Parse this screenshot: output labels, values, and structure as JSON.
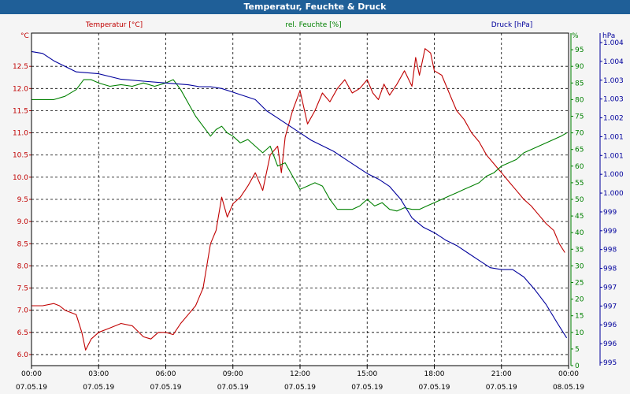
{
  "window": {
    "title": "Temperatur, Feuchte & Druck"
  },
  "colors": {
    "temp": "#c00000",
    "hum": "#008000",
    "press": "#00009c",
    "axis": "#000000",
    "grid": "#000000"
  },
  "chart_data": {
    "type": "line",
    "title": "Temperatur, Feuchte & Druck",
    "x_ticks": [
      {
        "time": "00:00",
        "date": "07.05.19"
      },
      {
        "time": "03:00",
        "date": "07.05.19"
      },
      {
        "time": "06:00",
        "date": "07.05.19"
      },
      {
        "time": "09:00",
        "date": "07.05.19"
      },
      {
        "time": "12:00",
        "date": "07.05.19"
      },
      {
        "time": "15:00",
        "date": "07.05.19"
      },
      {
        "time": "18:00",
        "date": "07.05.19"
      },
      {
        "time": "21:00",
        "date": "07.05.19"
      },
      {
        "time": "00:00",
        "date": "08.05.19"
      }
    ],
    "xlim": [
      "2019-05-07 00:00",
      "2019-05-08 00:00"
    ],
    "grid": true,
    "axes": {
      "temp": {
        "label": "Temperatur [°C]",
        "unit": "°C",
        "ylim": [
          5.75,
          13.25
        ],
        "ticks": [
          "6.0",
          "6.5",
          "7.0",
          "7.5",
          "8.0",
          "8.5",
          "9.0",
          "9.5",
          "10.0",
          "10.5",
          "11.0",
          "11.5",
          "12.0",
          "12.5"
        ]
      },
      "hum": {
        "label": "rel. Feuchte [%]",
        "unit": "%",
        "ylim": [
          0,
          100
        ],
        "ticks": [
          "0",
          "5",
          "10",
          "15",
          "20",
          "25",
          "30",
          "35",
          "40",
          "45",
          "50",
          "55",
          "60",
          "65",
          "70",
          "75",
          "80",
          "85",
          "90",
          "95"
        ]
      },
      "press": {
        "label": "Druck [hPa]",
        "unit": "hPa",
        "ylim": [
          995.5,
          1004.5
        ],
        "ticks": [
          "995",
          "996",
          "996",
          "997",
          "997",
          "998",
          "998",
          "999",
          "999",
          "1.000",
          "1.000",
          "1.001",
          "1.001",
          "1.002",
          "1.003",
          "1.003",
          "1.004",
          "1.004"
        ]
      }
    },
    "series": [
      {
        "name": "Temperatur [°C]",
        "axis": "temp",
        "points": [
          [
            "00:00",
            7.1
          ],
          [
            "00:30",
            7.1
          ],
          [
            "01:00",
            7.15
          ],
          [
            "01:15",
            7.1
          ],
          [
            "01:30",
            7.0
          ],
          [
            "02:00",
            6.9
          ],
          [
            "02:15",
            6.5
          ],
          [
            "02:25",
            6.1
          ],
          [
            "02:40",
            6.35
          ],
          [
            "03:00",
            6.5
          ],
          [
            "03:30",
            6.6
          ],
          [
            "04:00",
            6.7
          ],
          [
            "04:30",
            6.65
          ],
          [
            "05:00",
            6.4
          ],
          [
            "05:20",
            6.35
          ],
          [
            "05:40",
            6.5
          ],
          [
            "06:00",
            6.5
          ],
          [
            "06:20",
            6.45
          ],
          [
            "06:40",
            6.7
          ],
          [
            "07:00",
            6.9
          ],
          [
            "07:20",
            7.1
          ],
          [
            "07:40",
            7.5
          ],
          [
            "08:00",
            8.5
          ],
          [
            "08:15",
            8.8
          ],
          [
            "08:30",
            9.55
          ],
          [
            "08:45",
            9.1
          ],
          [
            "09:00",
            9.4
          ],
          [
            "09:20",
            9.55
          ],
          [
            "09:40",
            9.8
          ],
          [
            "10:00",
            10.1
          ],
          [
            "10:20",
            9.7
          ],
          [
            "10:40",
            10.5
          ],
          [
            "11:00",
            10.7
          ],
          [
            "11:10",
            10.1
          ],
          [
            "11:20",
            10.9
          ],
          [
            "11:40",
            11.5
          ],
          [
            "12:00",
            11.95
          ],
          [
            "12:20",
            11.2
          ],
          [
            "12:40",
            11.5
          ],
          [
            "13:00",
            11.9
          ],
          [
            "13:20",
            11.7
          ],
          [
            "13:40",
            12.0
          ],
          [
            "14:00",
            12.2
          ],
          [
            "14:20",
            11.9
          ],
          [
            "14:40",
            12.0
          ],
          [
            "15:00",
            12.2
          ],
          [
            "15:15",
            11.9
          ],
          [
            "15:30",
            11.75
          ],
          [
            "15:45",
            12.1
          ],
          [
            "16:00",
            11.85
          ],
          [
            "16:20",
            12.1
          ],
          [
            "16:40",
            12.4
          ],
          [
            "17:00",
            12.05
          ],
          [
            "17:10",
            12.7
          ],
          [
            "17:20",
            12.3
          ],
          [
            "17:35",
            12.9
          ],
          [
            "17:50",
            12.8
          ],
          [
            "18:00",
            12.4
          ],
          [
            "18:20",
            12.3
          ],
          [
            "18:40",
            11.9
          ],
          [
            "19:00",
            11.5
          ],
          [
            "19:20",
            11.3
          ],
          [
            "19:40",
            11.0
          ],
          [
            "20:00",
            10.8
          ],
          [
            "20:20",
            10.5
          ],
          [
            "20:40",
            10.3
          ],
          [
            "21:00",
            10.1
          ],
          [
            "21:20",
            9.9
          ],
          [
            "21:40",
            9.7
          ],
          [
            "22:00",
            9.5
          ],
          [
            "22:20",
            9.35
          ],
          [
            "22:40",
            9.15
          ],
          [
            "23:00",
            8.95
          ],
          [
            "23:20",
            8.8
          ],
          [
            "23:35",
            8.5
          ],
          [
            "23:50",
            8.3
          ]
        ]
      },
      {
        "name": "rel. Feuchte [%]",
        "axis": "hum",
        "points": [
          [
            "00:00",
            80
          ],
          [
            "00:30",
            80
          ],
          [
            "01:00",
            80
          ],
          [
            "01:30",
            81
          ],
          [
            "02:00",
            83
          ],
          [
            "02:20",
            86
          ],
          [
            "02:40",
            86
          ],
          [
            "03:00",
            85
          ],
          [
            "03:30",
            84
          ],
          [
            "04:00",
            84.5
          ],
          [
            "04:30",
            84
          ],
          [
            "05:00",
            85
          ],
          [
            "05:30",
            84
          ],
          [
            "06:00",
            85
          ],
          [
            "06:20",
            86
          ],
          [
            "06:40",
            83
          ],
          [
            "07:00",
            79
          ],
          [
            "07:20",
            75
          ],
          [
            "07:40",
            72
          ],
          [
            "08:00",
            69
          ],
          [
            "08:15",
            71
          ],
          [
            "08:30",
            72
          ],
          [
            "08:45",
            70
          ],
          [
            "09:00",
            69
          ],
          [
            "09:20",
            67
          ],
          [
            "09:40",
            68
          ],
          [
            "10:00",
            66
          ],
          [
            "10:20",
            64
          ],
          [
            "10:40",
            66
          ],
          [
            "11:00",
            60
          ],
          [
            "11:20",
            61
          ],
          [
            "11:40",
            57
          ],
          [
            "12:00",
            53
          ],
          [
            "12:20",
            54
          ],
          [
            "12:40",
            55
          ],
          [
            "13:00",
            54
          ],
          [
            "13:20",
            50
          ],
          [
            "13:40",
            47
          ],
          [
            "14:00",
            47
          ],
          [
            "14:20",
            47
          ],
          [
            "14:40",
            48
          ],
          [
            "15:00",
            50
          ],
          [
            "15:20",
            48
          ],
          [
            "15:40",
            49
          ],
          [
            "16:00",
            47
          ],
          [
            "16:20",
            46.5
          ],
          [
            "16:40",
            47.5
          ],
          [
            "17:00",
            47
          ],
          [
            "17:20",
            47
          ],
          [
            "17:40",
            48
          ],
          [
            "18:00",
            49
          ],
          [
            "18:20",
            50
          ],
          [
            "18:40",
            51
          ],
          [
            "19:00",
            52
          ],
          [
            "19:20",
            53
          ],
          [
            "19:40",
            54
          ],
          [
            "20:00",
            55
          ],
          [
            "20:20",
            57
          ],
          [
            "20:40",
            58
          ],
          [
            "21:00",
            60
          ],
          [
            "21:20",
            61
          ],
          [
            "21:40",
            62
          ],
          [
            "22:00",
            64
          ],
          [
            "22:20",
            65
          ],
          [
            "22:40",
            66
          ],
          [
            "23:00",
            67
          ],
          [
            "23:20",
            68
          ],
          [
            "23:40",
            69
          ],
          [
            "23:55",
            70
          ]
        ]
      },
      {
        "name": "Druck [hPa]",
        "axis": "press",
        "points": [
          [
            "00:00",
            1004.0
          ],
          [
            "00:30",
            1003.95
          ],
          [
            "01:00",
            1003.75
          ],
          [
            "01:30",
            1003.6
          ],
          [
            "02:00",
            1003.45
          ],
          [
            "03:00",
            1003.4
          ],
          [
            "04:00",
            1003.25
          ],
          [
            "05:00",
            1003.2
          ],
          [
            "06:00",
            1003.15
          ],
          [
            "07:00",
            1003.1
          ],
          [
            "07:30",
            1003.05
          ],
          [
            "08:00",
            1003.05
          ],
          [
            "08:30",
            1003.0
          ],
          [
            "09:00",
            1002.9
          ],
          [
            "10:00",
            1002.7
          ],
          [
            "10:30",
            1002.4
          ],
          [
            "11:00",
            1002.2
          ],
          [
            "11:30",
            1002.0
          ],
          [
            "12:00",
            1001.8
          ],
          [
            "12:30",
            1001.6
          ],
          [
            "13:00",
            1001.45
          ],
          [
            "13:30",
            1001.3
          ],
          [
            "14:00",
            1001.1
          ],
          [
            "14:30",
            1000.9
          ],
          [
            "15:00",
            1000.7
          ],
          [
            "15:30",
            1000.55
          ],
          [
            "16:00",
            1000.35
          ],
          [
            "16:30",
            1000.0
          ],
          [
            "17:00",
            999.5
          ],
          [
            "17:30",
            999.25
          ],
          [
            "18:00",
            999.1
          ],
          [
            "18:30",
            998.9
          ],
          [
            "19:00",
            998.75
          ],
          [
            "19:30",
            998.55
          ],
          [
            "20:00",
            998.35
          ],
          [
            "20:30",
            998.15
          ],
          [
            "21:00",
            998.1
          ],
          [
            "21:30",
            998.1
          ],
          [
            "22:00",
            997.9
          ],
          [
            "22:30",
            997.55
          ],
          [
            "23:00",
            997.15
          ],
          [
            "23:30",
            996.65
          ],
          [
            "23:55",
            996.25
          ]
        ]
      }
    ]
  }
}
